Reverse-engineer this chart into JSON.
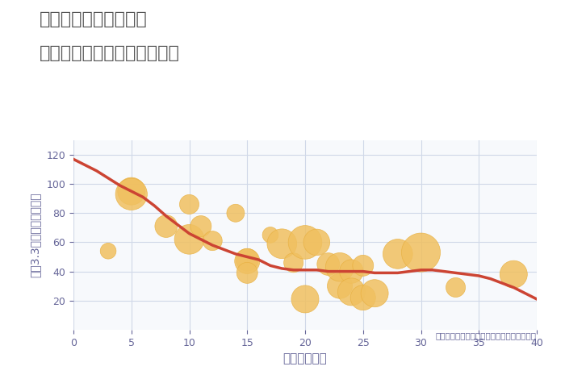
{
  "title_line1": "兵庫県姫路市五軒邸の",
  "title_line2": "築年数別中古マンション価格",
  "xlabel": "築年数（年）",
  "ylabel": "坪（3.3㎡）単価（万円）",
  "annotation": "円の大きさは、取引のあった物件面積を示す",
  "background_color": "#ffffff",
  "plot_bg_color": "#f7f9fc",
  "grid_color": "#d0d8e8",
  "title_color": "#555555",
  "axis_color": "#666699",
  "trend_color": "#cc4433",
  "scatter_color": "#f0c060",
  "scatter_edge_color": "#e8b040",
  "xlim": [
    0,
    40
  ],
  "ylim": [
    0,
    130
  ],
  "xticks": [
    0,
    5,
    10,
    15,
    20,
    25,
    30,
    35,
    40
  ],
  "yticks": [
    20,
    40,
    60,
    80,
    100,
    120
  ],
  "trend_x": [
    0,
    1,
    2,
    3,
    4,
    5,
    6,
    7,
    8,
    9,
    10,
    11,
    12,
    13,
    14,
    15,
    16,
    17,
    18,
    19,
    20,
    21,
    22,
    23,
    24,
    25,
    26,
    27,
    28,
    29,
    30,
    31,
    32,
    33,
    34,
    35,
    36,
    37,
    38,
    39,
    40
  ],
  "trend_y": [
    117,
    113,
    109,
    104,
    99,
    95,
    91,
    85,
    78,
    72,
    66,
    62,
    58,
    55,
    52,
    50,
    48,
    44,
    42,
    41,
    41,
    41,
    40,
    40,
    40,
    40,
    39,
    39,
    39,
    40,
    41,
    41,
    40,
    39,
    38,
    37,
    35,
    32,
    29,
    25,
    21
  ],
  "scatter_x": [
    3,
    5,
    5,
    8,
    10,
    10,
    11,
    12,
    14,
    15,
    15,
    15,
    17,
    18,
    19,
    20,
    20,
    21,
    22,
    23,
    23,
    24,
    24,
    25,
    25,
    26,
    28,
    30,
    33,
    38
  ],
  "scatter_y": [
    54,
    95,
    93,
    71,
    86,
    62,
    71,
    61,
    80,
    48,
    47,
    39,
    65,
    59,
    46,
    60,
    21,
    60,
    45,
    30,
    43,
    40,
    26,
    44,
    22,
    25,
    52,
    53,
    29,
    38
  ],
  "scatter_size": [
    200,
    600,
    800,
    400,
    300,
    700,
    350,
    300,
    250,
    400,
    500,
    350,
    200,
    700,
    300,
    900,
    600,
    550,
    400,
    500,
    650,
    450,
    600,
    350,
    500,
    600,
    700,
    1200,
    300,
    600
  ]
}
